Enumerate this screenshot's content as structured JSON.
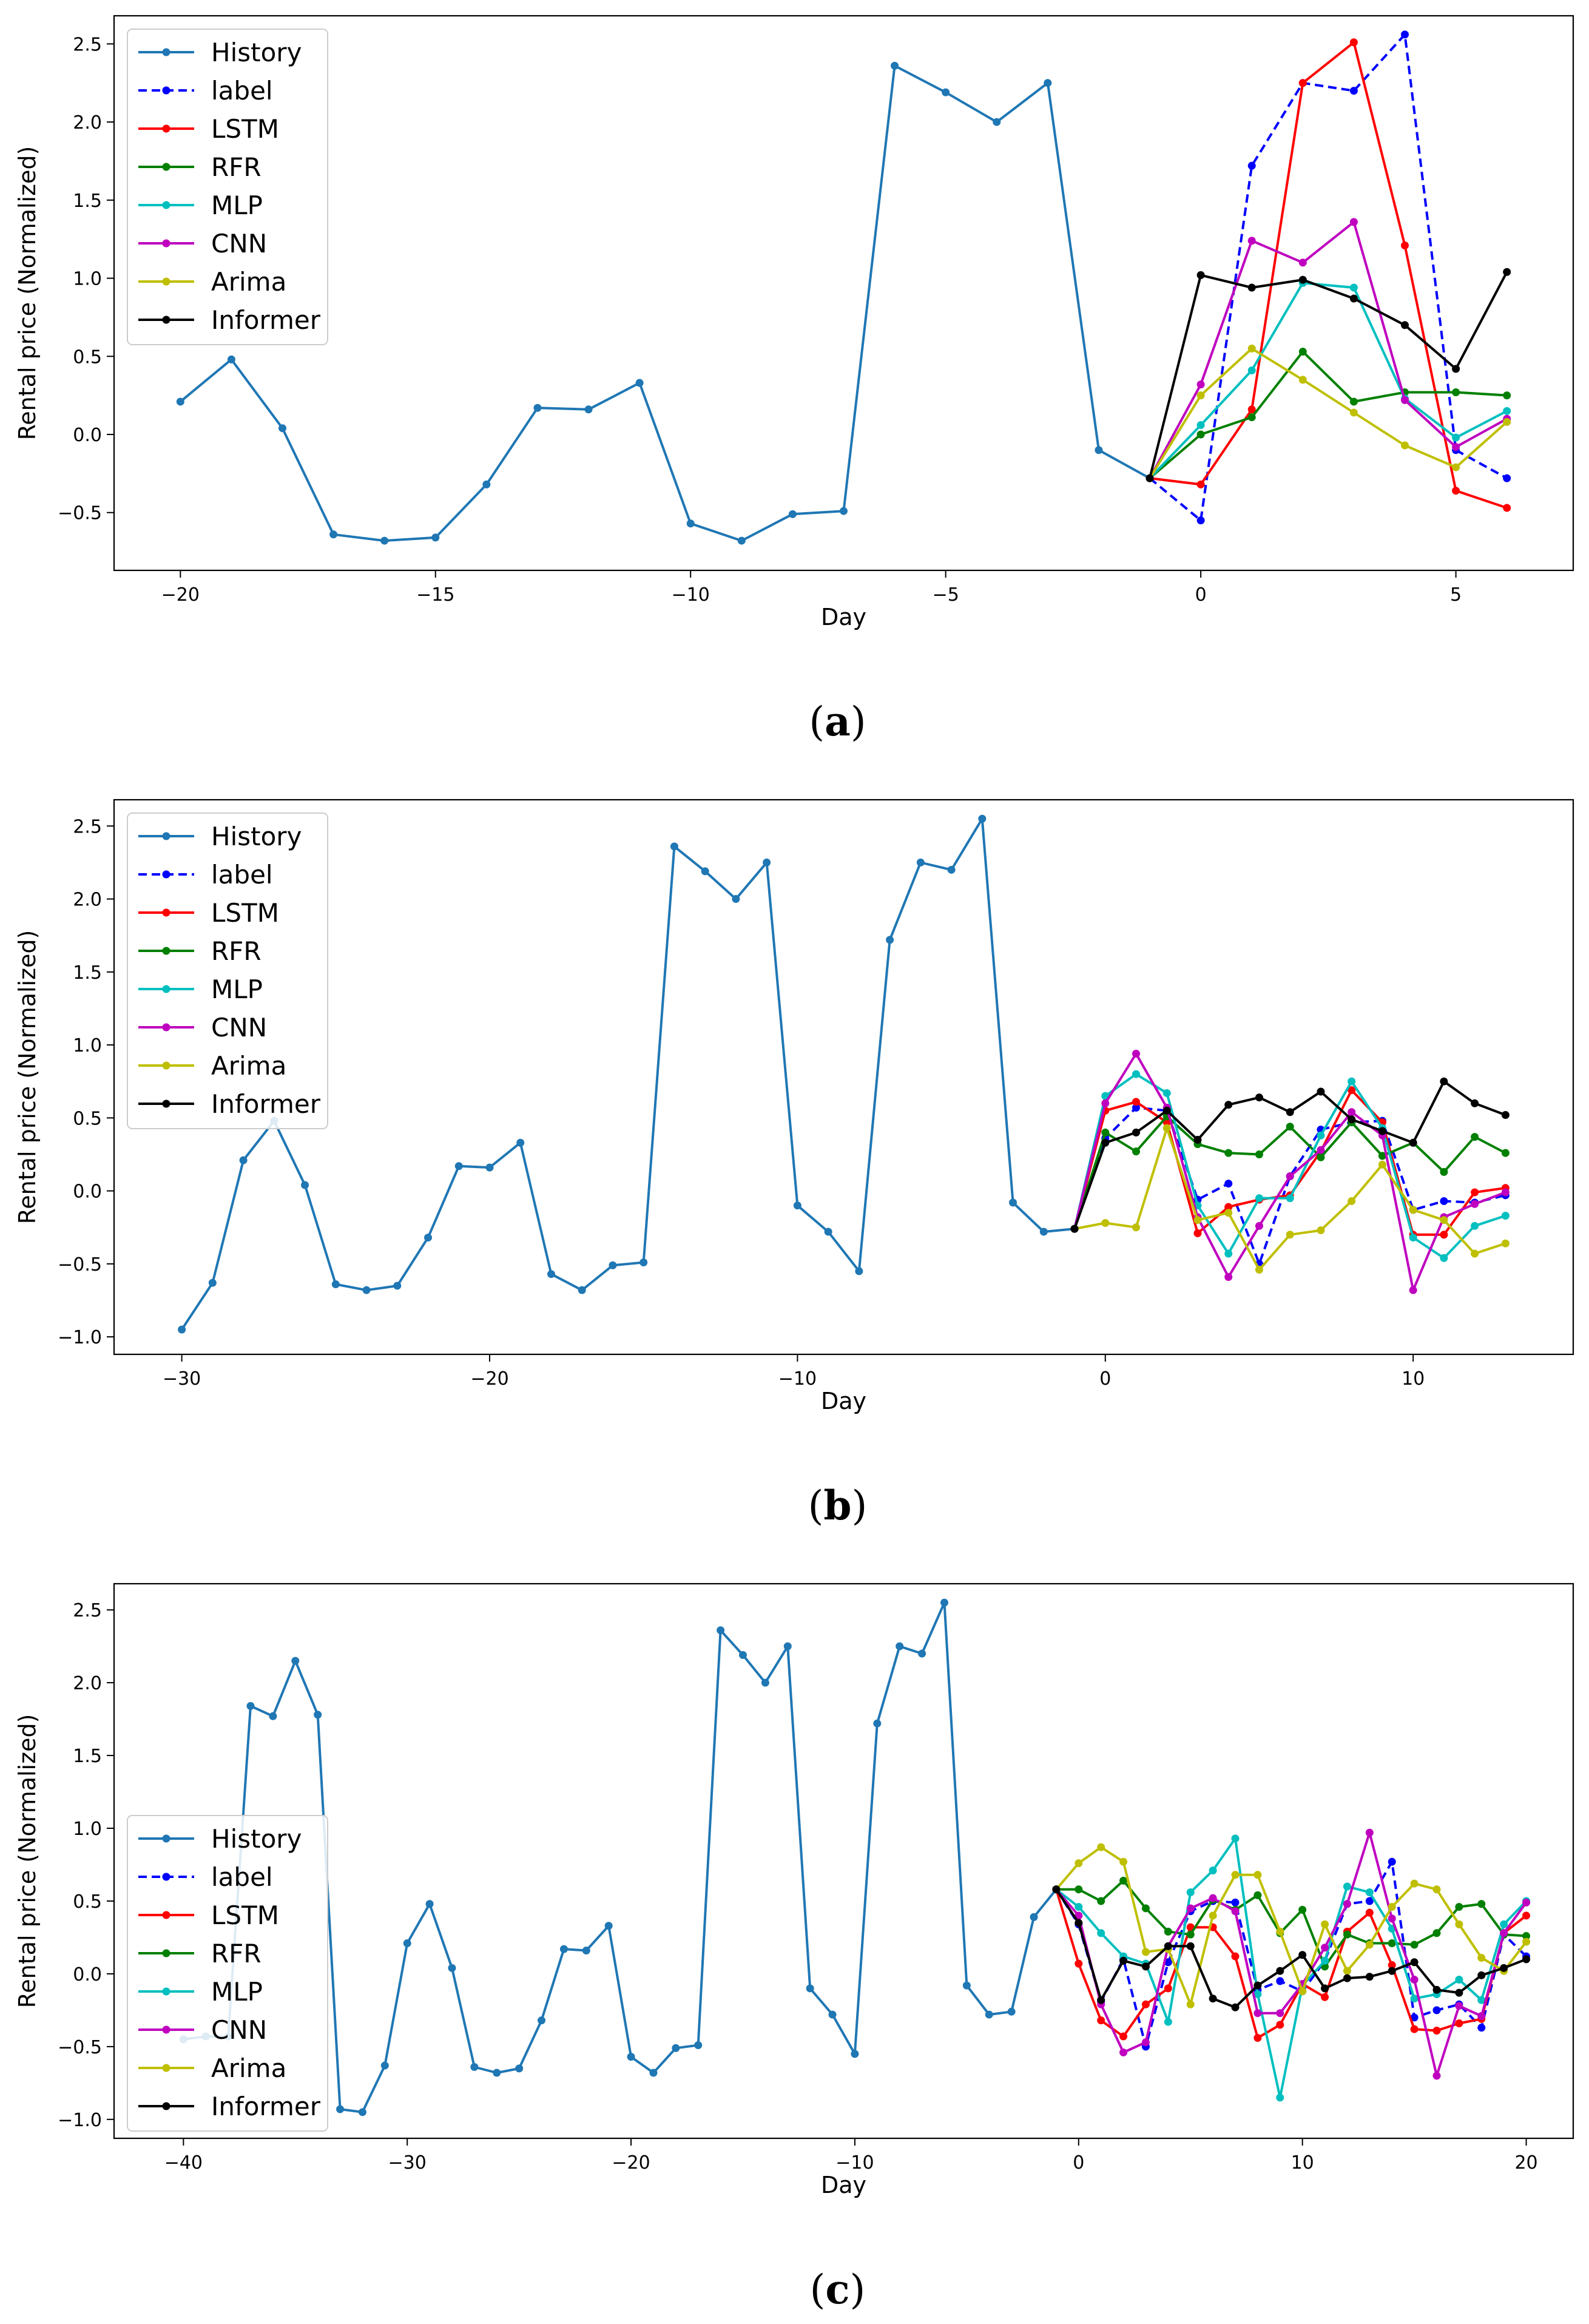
{
  "figure": {
    "colors": {
      "History": "#1f77b4",
      "label": "#0000ff",
      "LSTM": "#ff0000",
      "RFR": "#008000",
      "MLP": "#00bfbf",
      "CNN": "#bf00bf",
      "Arima": "#bfbf00",
      "Informer": "#000000"
    },
    "legend_labels": [
      "History",
      "label",
      "LSTM",
      "RFR",
      "MLP",
      "CNN",
      "Arima",
      "Informer"
    ]
  },
  "chart_data": [
    {
      "id": "a",
      "type": "line",
      "caption": {
        "open": "(",
        "letter": "a",
        "close": ")"
      },
      "xlabel": "Day",
      "ylabel": "Rental price (Normalized)",
      "xlim": [
        -21.3,
        7.3
      ],
      "ylim": [
        -0.87,
        2.68
      ],
      "xticks": [
        -20,
        -15,
        -10,
        -5,
        0,
        5
      ],
      "xtick_labels": [
        "−20",
        "−15",
        "−10",
        "−5",
        "0",
        "5"
      ],
      "yticks": [
        -0.5,
        0.0,
        0.5,
        1.0,
        1.5,
        2.0,
        2.5
      ],
      "ytick_labels": [
        "−0.5",
        "0.0",
        "0.5",
        "1.0",
        "1.5",
        "2.0",
        "2.5"
      ],
      "legend_position": "upper-left",
      "history": {
        "x": [
          -20,
          -19,
          -18,
          -17,
          -16,
          -15,
          -14,
          -13,
          -12,
          -11,
          -10,
          -9,
          -8,
          -7,
          -6,
          -5,
          -4,
          -3,
          -2,
          -1
        ],
        "y": [
          0.21,
          0.48,
          0.04,
          -0.64,
          -0.68,
          -0.66,
          -0.32,
          0.17,
          0.16,
          0.33,
          -0.57,
          -0.68,
          -0.51,
          -0.49,
          2.36,
          2.19,
          2.0,
          2.25,
          -0.1,
          -0.28
        ]
      },
      "forecast_x": [
        -1,
        0,
        1,
        2,
        3,
        4,
        5,
        6
      ],
      "series": [
        {
          "name": "label",
          "dashed": true,
          "values": [
            -0.28,
            -0.55,
            1.72,
            2.25,
            2.2,
            2.56,
            -0.1,
            -0.28
          ]
        },
        {
          "name": "LSTM",
          "values": [
            -0.28,
            -0.32,
            0.16,
            2.25,
            2.51,
            1.21,
            -0.36,
            -0.47
          ]
        },
        {
          "name": "RFR",
          "values": [
            -0.28,
            0.0,
            0.11,
            0.53,
            0.21,
            0.27,
            0.27,
            0.25
          ]
        },
        {
          "name": "MLP",
          "values": [
            -0.28,
            0.06,
            0.41,
            0.97,
            0.94,
            0.23,
            -0.02,
            0.15
          ]
        },
        {
          "name": "CNN",
          "values": [
            -0.28,
            0.32,
            1.24,
            1.1,
            1.36,
            0.22,
            -0.08,
            0.1
          ]
        },
        {
          "name": "Arima",
          "values": [
            -0.28,
            0.25,
            0.55,
            0.35,
            0.14,
            -0.07,
            -0.21,
            0.08
          ]
        },
        {
          "name": "Informer",
          "values": [
            -0.28,
            1.02,
            0.94,
            0.99,
            0.87,
            0.7,
            0.42,
            1.04
          ]
        }
      ]
    },
    {
      "id": "b",
      "type": "line",
      "caption": {
        "open": "(",
        "letter": "b",
        "close": ")"
      },
      "xlabel": "Day",
      "ylabel": "Rental price (Normalized)",
      "xlim": [
        -32.2,
        15.2
      ],
      "ylim": [
        -1.12,
        2.68
      ],
      "xticks": [
        -30,
        -20,
        -10,
        0,
        10
      ],
      "xtick_labels": [
        "−30",
        "−20",
        "−10",
        "0",
        "10"
      ],
      "yticks": [
        -1.0,
        -0.5,
        0.0,
        0.5,
        1.0,
        1.5,
        2.0,
        2.5
      ],
      "ytick_labels": [
        "−1.0",
        "−0.5",
        "0.0",
        "0.5",
        "1.0",
        "1.5",
        "2.0",
        "2.5"
      ],
      "legend_position": "upper-left",
      "history": {
        "x": [
          -30,
          -29,
          -28,
          -27,
          -26,
          -25,
          -24,
          -23,
          -22,
          -21,
          -20,
          -19,
          -18,
          -17,
          -16,
          -15,
          -14,
          -13,
          -12,
          -11,
          -10,
          -9,
          -8,
          -7,
          -6,
          -5,
          -4,
          -3,
          -2,
          -1
        ],
        "y": [
          -0.95,
          -0.63,
          0.21,
          0.48,
          0.04,
          -0.64,
          -0.68,
          -0.65,
          -0.32,
          0.17,
          0.16,
          0.33,
          -0.57,
          -0.68,
          -0.51,
          -0.49,
          2.36,
          2.19,
          2.0,
          2.25,
          -0.1,
          -0.28,
          -0.55,
          1.72,
          2.25,
          2.2,
          2.55,
          -0.08,
          -0.28,
          -0.26
        ]
      },
      "forecast_x": [
        -1,
        0,
        1,
        2,
        3,
        4,
        5,
        6,
        7,
        8,
        9,
        10,
        11,
        12,
        13
      ],
      "series": [
        {
          "name": "label",
          "dashed": true,
          "values": [
            -0.26,
            0.36,
            0.57,
            0.55,
            -0.06,
            0.05,
            -0.5,
            0.1,
            0.42,
            0.47,
            0.48,
            -0.13,
            -0.07,
            -0.08,
            -0.03
          ]
        },
        {
          "name": "LSTM",
          "values": [
            -0.26,
            0.55,
            0.61,
            0.47,
            -0.29,
            -0.11,
            -0.06,
            -0.03,
            0.27,
            0.69,
            0.47,
            -0.3,
            -0.3,
            -0.01,
            0.02
          ]
        },
        {
          "name": "RFR",
          "values": [
            -0.26,
            0.4,
            0.27,
            0.51,
            0.32,
            0.26,
            0.25,
            0.44,
            0.23,
            0.47,
            0.24,
            0.33,
            0.13,
            0.37,
            0.26
          ]
        },
        {
          "name": "MLP",
          "values": [
            -0.26,
            0.65,
            0.8,
            0.67,
            -0.1,
            -0.43,
            -0.05,
            -0.05,
            0.38,
            0.75,
            0.43,
            -0.32,
            -0.46,
            -0.24,
            -0.17
          ]
        },
        {
          "name": "CNN",
          "values": [
            -0.26,
            0.6,
            0.94,
            0.57,
            -0.18,
            -0.59,
            -0.24,
            0.1,
            0.28,
            0.54,
            0.38,
            -0.68,
            -0.18,
            -0.09,
            -0.01
          ]
        },
        {
          "name": "Arima",
          "values": [
            -0.26,
            -0.22,
            -0.25,
            0.43,
            -0.2,
            -0.15,
            -0.54,
            -0.3,
            -0.27,
            -0.07,
            0.18,
            -0.13,
            -0.2,
            -0.43,
            -0.36
          ]
        },
        {
          "name": "Informer",
          "values": [
            -0.26,
            0.33,
            0.4,
            0.55,
            0.35,
            0.59,
            0.64,
            0.54,
            0.68,
            0.49,
            0.41,
            0.33,
            0.75,
            0.6,
            0.52
          ]
        }
      ]
    },
    {
      "id": "c",
      "type": "line",
      "caption": {
        "open": "(",
        "letter": "c",
        "close": ")"
      },
      "xlabel": "Day",
      "ylabel": "Rental price (Normalized)",
      "xlim": [
        -43.1,
        22.1
      ],
      "ylim": [
        -1.13,
        2.68
      ],
      "xticks": [
        -40,
        -30,
        -20,
        -10,
        0,
        10,
        20
      ],
      "xtick_labels": [
        "−40",
        "−30",
        "−20",
        "−10",
        "0",
        "10",
        "20"
      ],
      "yticks": [
        -1.0,
        -0.5,
        0.0,
        0.5,
        1.0,
        1.5,
        2.0,
        2.5
      ],
      "ytick_labels": [
        "−1.0",
        "−0.5",
        "0.0",
        "0.5",
        "1.0",
        "1.5",
        "2.0",
        "2.5"
      ],
      "legend_position": "lower-left",
      "history": {
        "x": [
          -40,
          -39,
          -38,
          -37,
          -36,
          -35,
          -34,
          -33,
          -32,
          -31,
          -30,
          -29,
          -28,
          -27,
          -26,
          -25,
          -24,
          -23,
          -22,
          -21,
          -20,
          -19,
          -18,
          -17,
          -16,
          -15,
          -14,
          -13,
          -12,
          -11,
          -10,
          -9,
          -8,
          -7,
          -6,
          -5,
          -4,
          -3,
          -2,
          -1
        ],
        "y": [
          -0.45,
          -0.43,
          -0.43,
          1.84,
          1.77,
          2.15,
          1.78,
          -0.93,
          -0.95,
          -0.63,
          0.21,
          0.48,
          0.04,
          -0.64,
          -0.68,
          -0.65,
          -0.32,
          0.17,
          0.16,
          0.33,
          -0.57,
          -0.68,
          -0.51,
          -0.49,
          2.36,
          2.19,
          2.0,
          2.25,
          -0.1,
          -0.28,
          -0.55,
          1.72,
          2.25,
          2.2,
          2.55,
          -0.08,
          -0.28,
          -0.26,
          0.39,
          0.58
        ]
      },
      "forecast_x": [
        -1,
        0,
        1,
        2,
        3,
        4,
        5,
        6,
        7,
        8,
        9,
        10,
        11,
        12,
        13,
        14,
        15,
        16,
        17,
        18,
        19,
        20
      ],
      "series": [
        {
          "name": "label",
          "dashed": true,
          "values": [
            0.58,
            0.34,
            -0.19,
            0.1,
            -0.5,
            0.08,
            0.43,
            0.5,
            0.49,
            -0.11,
            -0.05,
            -0.12,
            0.09,
            0.48,
            0.5,
            0.77,
            -0.3,
            -0.25,
            -0.21,
            -0.37,
            0.27,
            0.12
          ]
        },
        {
          "name": "LSTM",
          "values": [
            0.58,
            0.07,
            -0.32,
            -0.43,
            -0.21,
            -0.1,
            0.32,
            0.32,
            0.12,
            -0.44,
            -0.35,
            -0.07,
            -0.16,
            0.29,
            0.42,
            0.06,
            -0.38,
            -0.39,
            -0.34,
            -0.31,
            0.28,
            0.4
          ]
        },
        {
          "name": "RFR",
          "values": [
            0.58,
            0.58,
            0.5,
            0.64,
            0.45,
            0.29,
            0.27,
            0.51,
            0.44,
            0.54,
            0.28,
            0.44,
            0.05,
            0.27,
            0.21,
            0.21,
            0.2,
            0.28,
            0.46,
            0.48,
            0.27,
            0.26
          ]
        },
        {
          "name": "MLP",
          "values": [
            0.58,
            0.46,
            0.28,
            0.12,
            0.07,
            -0.33,
            0.56,
            0.71,
            0.93,
            -0.14,
            -0.85,
            -0.08,
            0.09,
            0.6,
            0.56,
            0.31,
            -0.17,
            -0.14,
            -0.04,
            -0.18,
            0.34,
            0.5
          ]
        },
        {
          "name": "CNN",
          "values": [
            0.58,
            0.4,
            -0.21,
            -0.54,
            -0.47,
            0.19,
            0.45,
            0.52,
            0.43,
            -0.27,
            -0.27,
            -0.07,
            0.18,
            0.48,
            0.97,
            0.38,
            -0.04,
            -0.7,
            -0.22,
            -0.29,
            0.28,
            0.49
          ]
        },
        {
          "name": "Arima",
          "values": [
            0.58,
            0.76,
            0.87,
            0.77,
            0.15,
            0.17,
            -0.21,
            0.4,
            0.68,
            0.68,
            0.29,
            -0.12,
            0.34,
            0.02,
            0.2,
            0.46,
            0.62,
            0.58,
            0.34,
            0.11,
            0.02,
            0.22
          ]
        },
        {
          "name": "Informer",
          "values": [
            0.58,
            0.35,
            -0.18,
            0.09,
            0.05,
            0.19,
            0.19,
            -0.17,
            -0.23,
            -0.08,
            0.02,
            0.13,
            -0.1,
            -0.03,
            -0.02,
            0.02,
            0.08,
            -0.11,
            -0.13,
            -0.01,
            0.04,
            0.1
          ]
        }
      ]
    }
  ]
}
